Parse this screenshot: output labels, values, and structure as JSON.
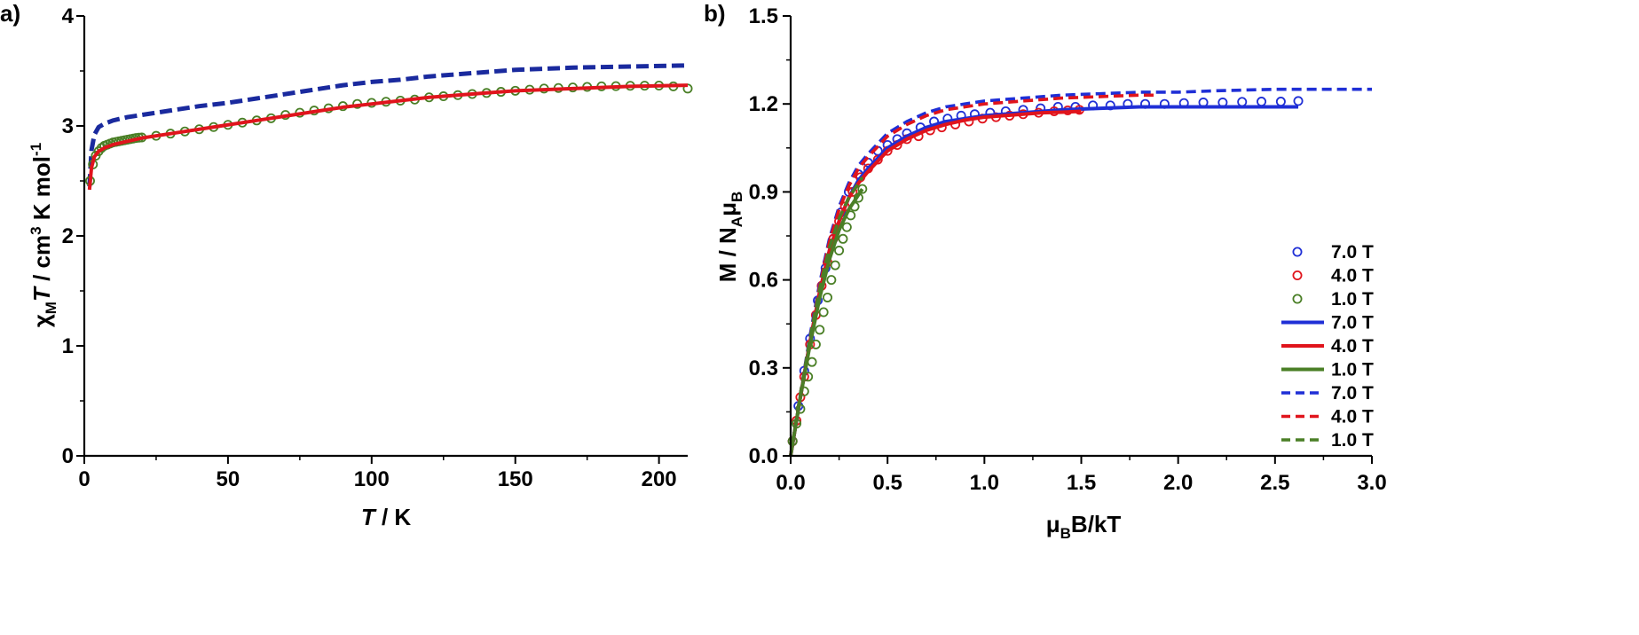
{
  "chart_data": [
    {
      "type": "line",
      "panel_label": "a)",
      "xlabel": {
        "var": "T",
        "rest": " / K"
      },
      "ylabel": {
        "chi": "χ",
        "sub": "M",
        "var": "T",
        "rest1": " / cm",
        "sup": "3",
        "rest2": " K mol",
        "sup2": "-1"
      },
      "xlim": [
        0,
        210
      ],
      "ylim": [
        0,
        4
      ],
      "xticks": [
        "0",
        "50",
        "100",
        "150",
        "200"
      ],
      "yticks": [
        "0",
        "1",
        "2",
        "3",
        "4"
      ],
      "series": [
        {
          "style": "dashed",
          "color": "#1a2a9e",
          "x": [
            1.8,
            2.5,
            3.5,
            5,
            7,
            10,
            15,
            20,
            30,
            40,
            50,
            60,
            70,
            80,
            90,
            100,
            110,
            120,
            130,
            140,
            150,
            160,
            170,
            180,
            190,
            200,
            210
          ],
          "y": [
            2.45,
            2.78,
            2.92,
            2.99,
            3.02,
            3.05,
            3.08,
            3.1,
            3.14,
            3.18,
            3.21,
            3.25,
            3.29,
            3.33,
            3.37,
            3.4,
            3.42,
            3.45,
            3.47,
            3.49,
            3.51,
            3.52,
            3.53,
            3.535,
            3.54,
            3.545,
            3.55
          ]
        },
        {
          "style": "markers",
          "color": "#4a7f26",
          "x": [
            2,
            3,
            4,
            5,
            6,
            7,
            8,
            9,
            10,
            11,
            12,
            13,
            14,
            15,
            16,
            17,
            18,
            19,
            20,
            25,
            30,
            35,
            40,
            45,
            50,
            55,
            60,
            65,
            70,
            75,
            80,
            85,
            90,
            95,
            100,
            105,
            110,
            115,
            120,
            125,
            130,
            135,
            140,
            145,
            150,
            155,
            160,
            165,
            170,
            175,
            180,
            185,
            190,
            195,
            200,
            205,
            210
          ],
          "y": [
            2.5,
            2.65,
            2.73,
            2.77,
            2.8,
            2.82,
            2.83,
            2.84,
            2.85,
            2.855,
            2.86,
            2.865,
            2.87,
            2.875,
            2.88,
            2.885,
            2.89,
            2.893,
            2.895,
            2.91,
            2.93,
            2.95,
            2.97,
            2.99,
            3.01,
            3.03,
            3.05,
            3.07,
            3.1,
            3.12,
            3.14,
            3.16,
            3.18,
            3.2,
            3.21,
            3.22,
            3.23,
            3.24,
            3.26,
            3.27,
            3.28,
            3.29,
            3.3,
            3.31,
            3.32,
            3.33,
            3.34,
            3.345,
            3.35,
            3.355,
            3.36,
            3.362,
            3.365,
            3.366,
            3.367,
            3.36,
            3.34
          ]
        },
        {
          "style": "solid",
          "color": "#e0141c",
          "x": [
            1.8,
            2.5,
            3.5,
            5,
            7,
            10,
            15,
            20,
            30,
            40,
            50,
            60,
            70,
            80,
            90,
            100,
            110,
            120,
            130,
            140,
            150,
            160,
            170,
            180,
            190,
            200,
            210
          ],
          "y": [
            2.42,
            2.62,
            2.72,
            2.77,
            2.8,
            2.83,
            2.86,
            2.89,
            2.93,
            2.97,
            3.01,
            3.05,
            3.09,
            3.13,
            3.17,
            3.2,
            3.23,
            3.26,
            3.28,
            3.3,
            3.32,
            3.33,
            3.34,
            3.35,
            3.36,
            3.365,
            3.37
          ]
        }
      ]
    },
    {
      "type": "line",
      "panel_label": "b)",
      "xlabel": {
        "mu": "μ",
        "sub": "B",
        "rest": "B/kT"
      },
      "ylabel": {
        "pre": "M / N",
        "sub1": "A",
        "mu": "μ",
        "sub2": "B"
      },
      "xlim": [
        0.0,
        3.0
      ],
      "ylim": [
        0.0,
        1.5
      ],
      "xticks": [
        "0.0",
        "0.5",
        "1.0",
        "1.5",
        "2.0",
        "2.5",
        "3.0"
      ],
      "yticks": [
        "0.0",
        "0.3",
        "0.6",
        "0.9",
        "1.2",
        "1.5"
      ],
      "series": [
        {
          "name": "7.0 T",
          "style": "markers",
          "color": "#1f2fd6",
          "x": [
            0.01,
            0.04,
            0.07,
            0.1,
            0.14,
            0.18,
            0.22,
            0.26,
            0.3,
            0.35,
            0.4,
            0.45,
            0.5,
            0.55,
            0.6,
            0.67,
            0.74,
            0.81,
            0.88,
            0.95,
            1.03,
            1.11,
            1.2,
            1.29,
            1.38,
            1.47,
            1.56,
            1.65,
            1.74,
            1.83,
            1.93,
            2.03,
            2.13,
            2.23,
            2.33,
            2.43,
            2.53,
            2.62
          ],
          "y": [
            0.05,
            0.17,
            0.29,
            0.4,
            0.53,
            0.64,
            0.74,
            0.83,
            0.9,
            0.96,
            1.0,
            1.04,
            1.06,
            1.08,
            1.1,
            1.12,
            1.14,
            1.15,
            1.16,
            1.165,
            1.17,
            1.175,
            1.18,
            1.185,
            1.19,
            1.19,
            1.195,
            1.195,
            1.2,
            1.2,
            1.2,
            1.203,
            1.205,
            1.205,
            1.207,
            1.208,
            1.208,
            1.21
          ]
        },
        {
          "name": "4.0 T",
          "style": "markers",
          "color": "#e0141c",
          "x": [
            0.01,
            0.03,
            0.05,
            0.07,
            0.1,
            0.13,
            0.16,
            0.19,
            0.22,
            0.25,
            0.28,
            0.32,
            0.36,
            0.4,
            0.45,
            0.5,
            0.55,
            0.6,
            0.66,
            0.72,
            0.78,
            0.85,
            0.92,
            0.99,
            1.06,
            1.13,
            1.2,
            1.28,
            1.36,
            1.43,
            1.49
          ],
          "y": [
            0.05,
            0.12,
            0.2,
            0.27,
            0.38,
            0.48,
            0.58,
            0.66,
            0.74,
            0.8,
            0.85,
            0.9,
            0.95,
            0.98,
            1.01,
            1.04,
            1.06,
            1.08,
            1.09,
            1.11,
            1.12,
            1.13,
            1.14,
            1.15,
            1.155,
            1.16,
            1.165,
            1.17,
            1.175,
            1.178,
            1.18
          ]
        },
        {
          "name": "1.0 T",
          "style": "markers",
          "color": "#4a7f26",
          "x": [
            0.01,
            0.03,
            0.05,
            0.07,
            0.09,
            0.11,
            0.13,
            0.15,
            0.17,
            0.19,
            0.21,
            0.23,
            0.25,
            0.27,
            0.29,
            0.31,
            0.33,
            0.35,
            0.37
          ],
          "y": [
            0.05,
            0.11,
            0.16,
            0.22,
            0.27,
            0.32,
            0.38,
            0.43,
            0.49,
            0.54,
            0.6,
            0.65,
            0.7,
            0.74,
            0.78,
            0.82,
            0.85,
            0.88,
            0.91
          ]
        },
        {
          "name": "7.0 T",
          "style": "solid",
          "color": "#1f2fd6",
          "x": [
            0.0,
            0.05,
            0.1,
            0.15,
            0.2,
            0.25,
            0.3,
            0.35,
            0.4,
            0.5,
            0.6,
            0.7,
            0.8,
            0.9,
            1.0,
            1.2,
            1.4,
            1.6,
            1.8,
            2.0,
            2.2,
            2.4,
            2.62
          ],
          "y": [
            0.0,
            0.2,
            0.39,
            0.56,
            0.7,
            0.8,
            0.88,
            0.94,
            0.98,
            1.05,
            1.09,
            1.12,
            1.14,
            1.15,
            1.16,
            1.17,
            1.18,
            1.185,
            1.19,
            1.19,
            1.19,
            1.19,
            1.19
          ]
        },
        {
          "name": "4.0 T",
          "style": "solid",
          "color": "#e0141c",
          "x": [
            0.0,
            0.05,
            0.1,
            0.15,
            0.2,
            0.25,
            0.3,
            0.35,
            0.4,
            0.5,
            0.6,
            0.7,
            0.8,
            0.9,
            1.0,
            1.1,
            1.2,
            1.3,
            1.4,
            1.5
          ],
          "y": [
            0.0,
            0.2,
            0.39,
            0.56,
            0.7,
            0.8,
            0.88,
            0.93,
            0.97,
            1.04,
            1.08,
            1.11,
            1.13,
            1.145,
            1.155,
            1.16,
            1.165,
            1.17,
            1.172,
            1.175
          ]
        },
        {
          "name": "1.0 T",
          "style": "solid",
          "color": "#4a7f26",
          "x": [
            0.0,
            0.05,
            0.1,
            0.15,
            0.2,
            0.25,
            0.3,
            0.35,
            0.37
          ],
          "y": [
            0.0,
            0.2,
            0.38,
            0.54,
            0.67,
            0.77,
            0.84,
            0.89,
            0.91
          ]
        },
        {
          "name": "7.0 T",
          "style": "dashed",
          "color": "#1f2fd6",
          "x": [
            0.0,
            0.05,
            0.1,
            0.15,
            0.2,
            0.25,
            0.3,
            0.35,
            0.4,
            0.5,
            0.6,
            0.7,
            0.8,
            0.9,
            1.0,
            1.2,
            1.4,
            1.6,
            1.8,
            2.0,
            2.2,
            2.5,
            2.8,
            3.0
          ],
          "y": [
            0.0,
            0.21,
            0.41,
            0.59,
            0.74,
            0.85,
            0.93,
            0.99,
            1.03,
            1.1,
            1.14,
            1.17,
            1.19,
            1.2,
            1.21,
            1.22,
            1.23,
            1.235,
            1.24,
            1.24,
            1.245,
            1.25,
            1.25,
            1.25
          ]
        },
        {
          "name": "4.0 T",
          "style": "dashed",
          "color": "#e0141c",
          "x": [
            0.0,
            0.05,
            0.1,
            0.15,
            0.2,
            0.25,
            0.3,
            0.35,
            0.4,
            0.5,
            0.6,
            0.7,
            0.8,
            0.9,
            1.0,
            1.2,
            1.4,
            1.6,
            1.8,
            1.9
          ],
          "y": [
            0.0,
            0.21,
            0.4,
            0.58,
            0.73,
            0.84,
            0.92,
            0.98,
            1.02,
            1.09,
            1.13,
            1.16,
            1.18,
            1.19,
            1.2,
            1.21,
            1.22,
            1.225,
            1.23,
            1.23
          ]
        },
        {
          "name": "1.0 T",
          "style": "dashed",
          "color": "#4a7f26",
          "x": [
            0.0,
            0.05,
            0.1,
            0.15,
            0.2,
            0.25,
            0.3,
            0.35,
            0.37
          ],
          "y": [
            0.0,
            0.21,
            0.4,
            0.57,
            0.71,
            0.81,
            0.88,
            0.93,
            0.95
          ]
        }
      ],
      "legend": {
        "position": "bottom-right"
      }
    }
  ]
}
